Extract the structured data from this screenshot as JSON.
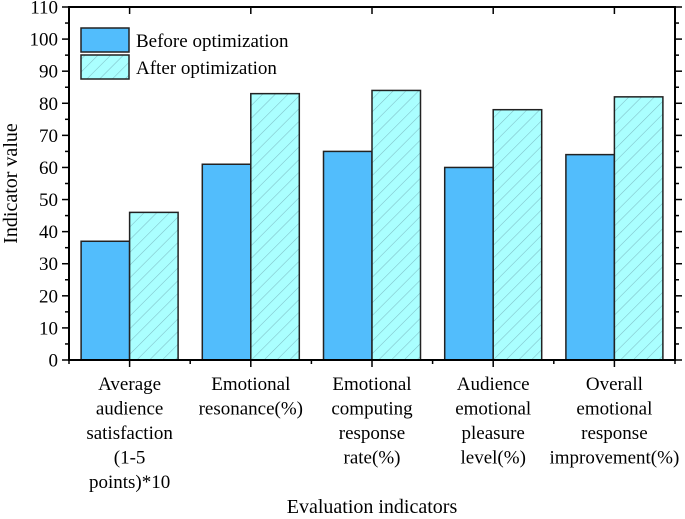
{
  "chart_data": {
    "type": "bar",
    "title": "",
    "xlabel": "Evaluation indicators",
    "ylabel": "Indicator value",
    "ylim": [
      0,
      110
    ],
    "yticks": [
      0,
      10,
      20,
      30,
      40,
      50,
      60,
      70,
      80,
      90,
      100,
      110
    ],
    "ytick_labels": [
      "0",
      "10",
      "20",
      "30",
      "40",
      "50",
      "60",
      "70",
      "80",
      "90",
      "100",
      "110"
    ],
    "grid": false,
    "legend_position": "top-left",
    "categories": [
      [
        "Average",
        "audience",
        "satisfaction",
        "(1-5",
        "points)*10"
      ],
      [
        "Emotional",
        "resonance(%)"
      ],
      [
        "Emotional",
        "computing",
        "response",
        "rate(%)"
      ],
      [
        "Audience",
        "emotional",
        "pleasure",
        "level(%)"
      ],
      [
        "Overall",
        "emotional",
        "response",
        "improvement(%)"
      ]
    ],
    "series": [
      {
        "name": "Before optimization",
        "values": [
          37,
          61,
          65,
          60,
          64
        ],
        "color": "#52bdfc",
        "pattern": "solid"
      },
      {
        "name": "After optimization",
        "values": [
          46,
          83,
          84,
          78,
          82
        ],
        "color": "#aaffff",
        "pattern": "diagonal-hatch",
        "hatch_color": "#7fbfc6"
      }
    ],
    "edge_color": "#222222"
  }
}
